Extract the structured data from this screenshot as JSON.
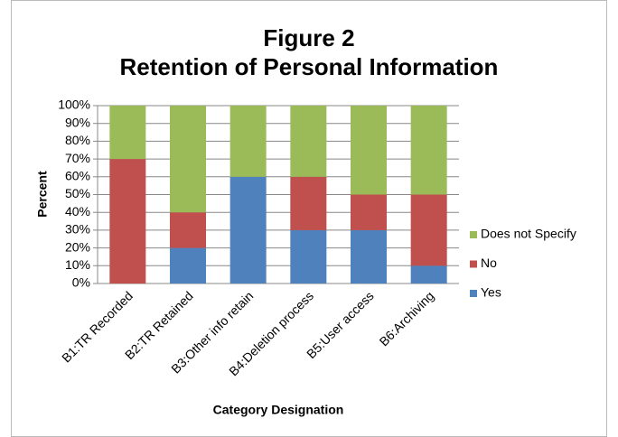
{
  "chart_data": {
    "type": "stacked_bar",
    "title": "Figure 2",
    "subtitle": "Retention of Personal Information",
    "x_label": "Category Designation",
    "y_label": "Percent",
    "categories": [
      "B1:TR Recorded",
      "B2:TR Retained",
      "B3:Other info retain",
      "B4:Deletion process",
      "B5:User access",
      "B6:Archiving"
    ],
    "series": [
      {
        "name": "Yes",
        "color": "#4f81bd",
        "values": [
          0,
          20,
          60,
          30,
          30,
          10
        ]
      },
      {
        "name": "No",
        "color": "#c0504d",
        "values": [
          70,
          20,
          0,
          30,
          20,
          40
        ]
      },
      {
        "name": "Does not Specify",
        "color": "#9bbb59",
        "values": [
          30,
          60,
          40,
          40,
          50,
          50
        ]
      }
    ],
    "ylim": [
      0,
      100
    ],
    "yticks": [
      {
        "value": 0,
        "label": "0%"
      },
      {
        "value": 10,
        "label": "10%"
      },
      {
        "value": 20,
        "label": "20%"
      },
      {
        "value": 30,
        "label": "30%"
      },
      {
        "value": 40,
        "label": "40%"
      },
      {
        "value": 50,
        "label": "50%"
      },
      {
        "value": 60,
        "label": "60%"
      },
      {
        "value": 70,
        "label": "70%"
      },
      {
        "value": 80,
        "label": "80%"
      },
      {
        "value": 90,
        "label": "90%"
      },
      {
        "value": 100,
        "label": "100%"
      }
    ],
    "grid": true,
    "legend": "right"
  }
}
